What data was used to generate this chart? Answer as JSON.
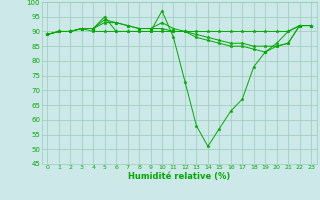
{
  "xlabel": "Humidité relative (%)",
  "background_color": "#cce8e8",
  "grid_color": "#99ccbb",
  "line_color": "#00aa00",
  "ylim": [
    45,
    100
  ],
  "xlim": [
    -0.5,
    23.5
  ],
  "yticks": [
    45,
    50,
    55,
    60,
    65,
    70,
    75,
    80,
    85,
    90,
    95,
    100
  ],
  "xticks": [
    0,
    1,
    2,
    3,
    4,
    5,
    6,
    7,
    8,
    9,
    10,
    11,
    12,
    13,
    14,
    15,
    16,
    17,
    18,
    19,
    20,
    21,
    22,
    23
  ],
  "series": [
    [
      89,
      90,
      90,
      91,
      91,
      95,
      90,
      90,
      90,
      90,
      97,
      88,
      73,
      58,
      51,
      57,
      63,
      67,
      78,
      83,
      86,
      90,
      92,
      92
    ],
    [
      89,
      90,
      90,
      91,
      91,
      94,
      93,
      92,
      91,
      91,
      93,
      91,
      90,
      88,
      87,
      86,
      85,
      85,
      84,
      83,
      85,
      86,
      92,
      92
    ],
    [
      89,
      90,
      90,
      91,
      91,
      93,
      93,
      92,
      91,
      91,
      91,
      90,
      90,
      89,
      88,
      87,
      86,
      86,
      85,
      85,
      85,
      86,
      92,
      92
    ],
    [
      89,
      90,
      90,
      91,
      90,
      90,
      90,
      90,
      90,
      90,
      90,
      90,
      90,
      90,
      90,
      90,
      90,
      90,
      90,
      90,
      90,
      90,
      92,
      92
    ]
  ]
}
